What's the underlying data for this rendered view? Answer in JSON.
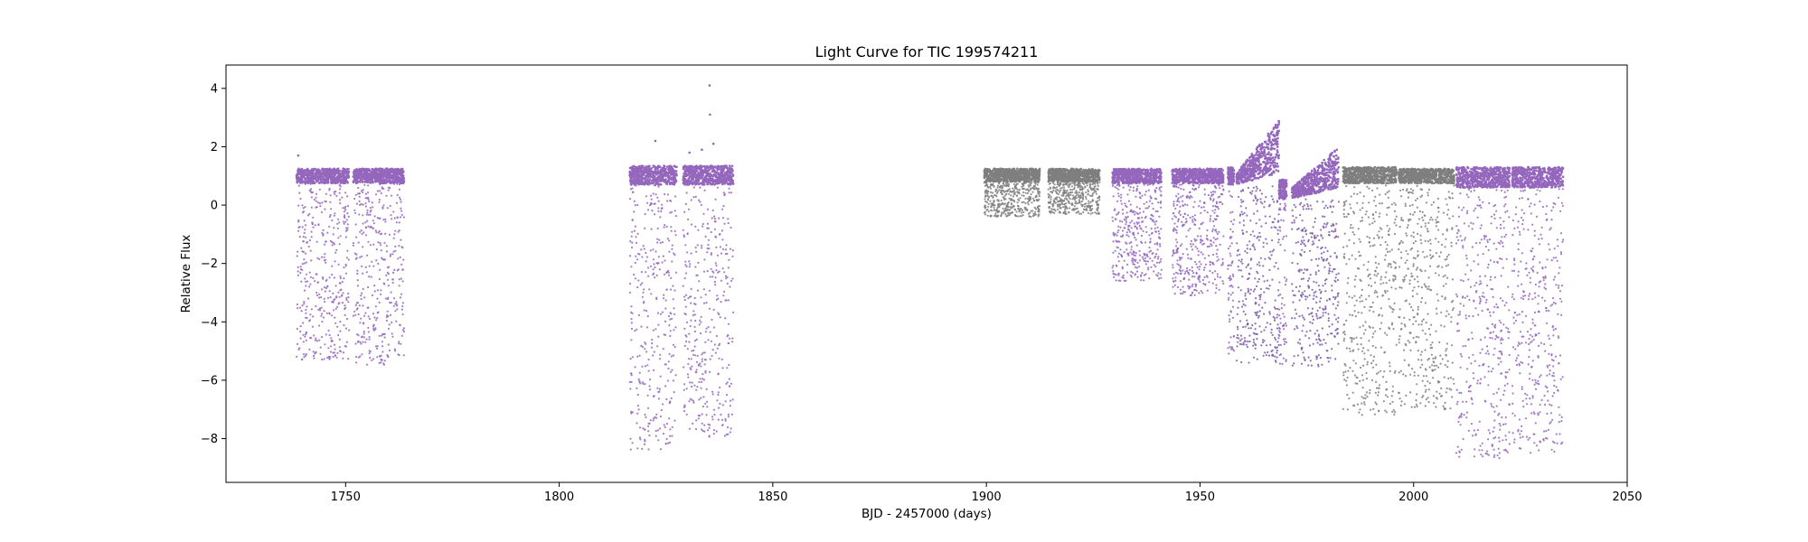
{
  "chart_data": {
    "type": "scatter",
    "title": "Light Curve for TIC 199574211",
    "xlabel": "BJD - 2457000 (days)",
    "ylabel": "Relative Flux",
    "xlim": [
      1722,
      2050
    ],
    "ylim": [
      -9.5,
      4.8
    ],
    "x_ticks": [
      1750,
      1800,
      1850,
      1900,
      1950,
      2000,
      2050
    ],
    "y_ticks": [
      4,
      2,
      0,
      -2,
      -4,
      -6,
      -8
    ],
    "grid": false,
    "legend": "none",
    "colors": {
      "purple": "#9467bd",
      "gray": "#7f7f7f",
      "dip_purple": "#7a5aa8"
    },
    "segments": [
      {
        "x": [
          1738.5,
          1750.8
        ],
        "band": [
          0.75,
          1.25
        ],
        "min": -5.3,
        "color": "purple"
      },
      {
        "x": [
          1751.8,
          1763.7
        ],
        "band": [
          0.75,
          1.25
        ],
        "min": -5.5,
        "color": "purple"
      },
      {
        "x": [
          1816.5,
          1827.5
        ],
        "band": [
          0.7,
          1.35
        ],
        "min": -8.4,
        "color": "purple"
      },
      {
        "x": [
          1829.0,
          1840.8
        ],
        "band": [
          0.7,
          1.35
        ],
        "min": -8.0,
        "color": "purple"
      },
      {
        "x": [
          1899.5,
          1912.5
        ],
        "band": [
          0.8,
          1.25
        ],
        "min": -0.4,
        "color": "gray"
      },
      {
        "x": [
          1914.5,
          1926.5
        ],
        "band": [
          0.8,
          1.25
        ],
        "min": -0.3,
        "color": "gray"
      },
      {
        "x": [
          1929.5,
          1941.0
        ],
        "band": [
          0.75,
          1.25
        ],
        "min": -2.6,
        "color": "purple"
      },
      {
        "x": [
          1943.5,
          1955.5
        ],
        "band": [
          0.75,
          1.25
        ],
        "min": -3.1,
        "color": "purple"
      },
      {
        "x": [
          1956.5,
          1958.0
        ],
        "band": [
          0.7,
          1.3
        ],
        "min": -5.2,
        "color": "purple"
      },
      {
        "x": [
          1958.5,
          1968.5
        ],
        "band": [
          0.7,
          2.9
        ],
        "min": -5.4,
        "color": "purple",
        "rising": true
      },
      {
        "x": [
          1968.5,
          1970.3
        ],
        "band": [
          0.2,
          0.9
        ],
        "min": -5.5,
        "color": "purple"
      },
      {
        "x": [
          1971.5,
          1982.5
        ],
        "band": [
          0.2,
          2.0
        ],
        "min": -5.6,
        "color": "purple",
        "rising": true
      },
      {
        "x": [
          1983.5,
          1996.0
        ],
        "band": [
          0.75,
          1.3
        ],
        "min": -7.2,
        "color": "gray"
      },
      {
        "x": [
          1996.5,
          2009.5
        ],
        "band": [
          0.75,
          1.25
        ],
        "min": -7.0,
        "color": "gray"
      },
      {
        "x": [
          2010.0,
          2022.5
        ],
        "band": [
          0.6,
          1.3
        ],
        "min": -8.7,
        "color": "purple"
      },
      {
        "x": [
          2023.0,
          2035.0
        ],
        "band": [
          0.6,
          1.3
        ],
        "min": -8.5,
        "color": "purple"
      }
    ],
    "outliers": [
      {
        "x": 1738.9,
        "y": 1.7
      },
      {
        "x": 1822.5,
        "y": 2.2
      },
      {
        "x": 1830.5,
        "y": 1.8
      },
      {
        "x": 1833.4,
        "y": 1.9
      },
      {
        "x": 1835.2,
        "y": 4.1
      },
      {
        "x": 1835.3,
        "y": 3.1
      },
      {
        "x": 1836.1,
        "y": 2.1
      }
    ]
  }
}
